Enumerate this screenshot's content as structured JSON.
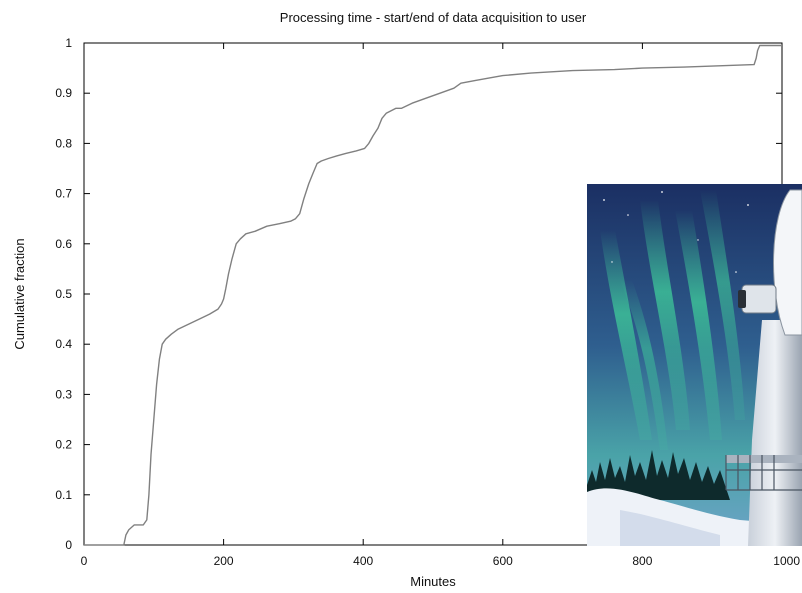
{
  "chart_data": {
    "type": "line",
    "title": "Processing time - start/end of data acquisition to user",
    "xlabel": "Minutes",
    "ylabel": "Cumulative fraction",
    "xlim": [
      0,
      1000
    ],
    "ylim": [
      0,
      1
    ],
    "x_ticks": [
      "0",
      "200",
      "400",
      "600",
      "800",
      "1000"
    ],
    "y_ticks": [
      "0",
      "0.1",
      "0.2",
      "0.3",
      "0.4",
      "0.5",
      "0.6",
      "0.7",
      "0.8",
      "0.9",
      "1"
    ],
    "grid": false,
    "series": [
      {
        "line_color": "#808080",
        "x": [
          0,
          57,
          60,
          64,
          68,
          72,
          78,
          85,
          90,
          93,
          96,
          100,
          104,
          108,
          112,
          117,
          125,
          135,
          150,
          165,
          180,
          192,
          197,
          200,
          203,
          207,
          212,
          218,
          224,
          232,
          245,
          262,
          280,
          296,
          303,
          309,
          315,
          322,
          328,
          334,
          340,
          350,
          362,
          375,
          390,
          402,
          408,
          414,
          421,
          427,
          433,
          440,
          447,
          455,
          470,
          490,
          510,
          530,
          540,
          560,
          580,
          600,
          640,
          700,
          760,
          800,
          860,
          920,
          960,
          963,
          965,
          968,
          972,
          1000
        ],
        "y": [
          0,
          0,
          0.02,
          0.03,
          0.035,
          0.04,
          0.04,
          0.04,
          0.05,
          0.1,
          0.18,
          0.25,
          0.32,
          0.37,
          0.4,
          0.41,
          0.42,
          0.43,
          0.44,
          0.45,
          0.46,
          0.47,
          0.48,
          0.49,
          0.51,
          0.54,
          0.57,
          0.6,
          0.61,
          0.62,
          0.625,
          0.635,
          0.64,
          0.645,
          0.65,
          0.66,
          0.69,
          0.72,
          0.74,
          0.76,
          0.765,
          0.77,
          0.775,
          0.78,
          0.785,
          0.79,
          0.8,
          0.815,
          0.83,
          0.85,
          0.86,
          0.865,
          0.87,
          0.87,
          0.88,
          0.89,
          0.9,
          0.91,
          0.92,
          0.925,
          0.93,
          0.935,
          0.94,
          0.945,
          0.947,
          0.95,
          0.952,
          0.955,
          0.957,
          0.97,
          0.985,
          0.995,
          0.995,
          0.995
        ]
      }
    ]
  },
  "overlay_photo": {
    "subject": "aurora-over-radar-antenna",
    "sky_top": "#1a3a6e",
    "aurora_color": "#3fcf9a",
    "snow_color": "#eef2f8",
    "tower_color": "#d8dde3"
  }
}
